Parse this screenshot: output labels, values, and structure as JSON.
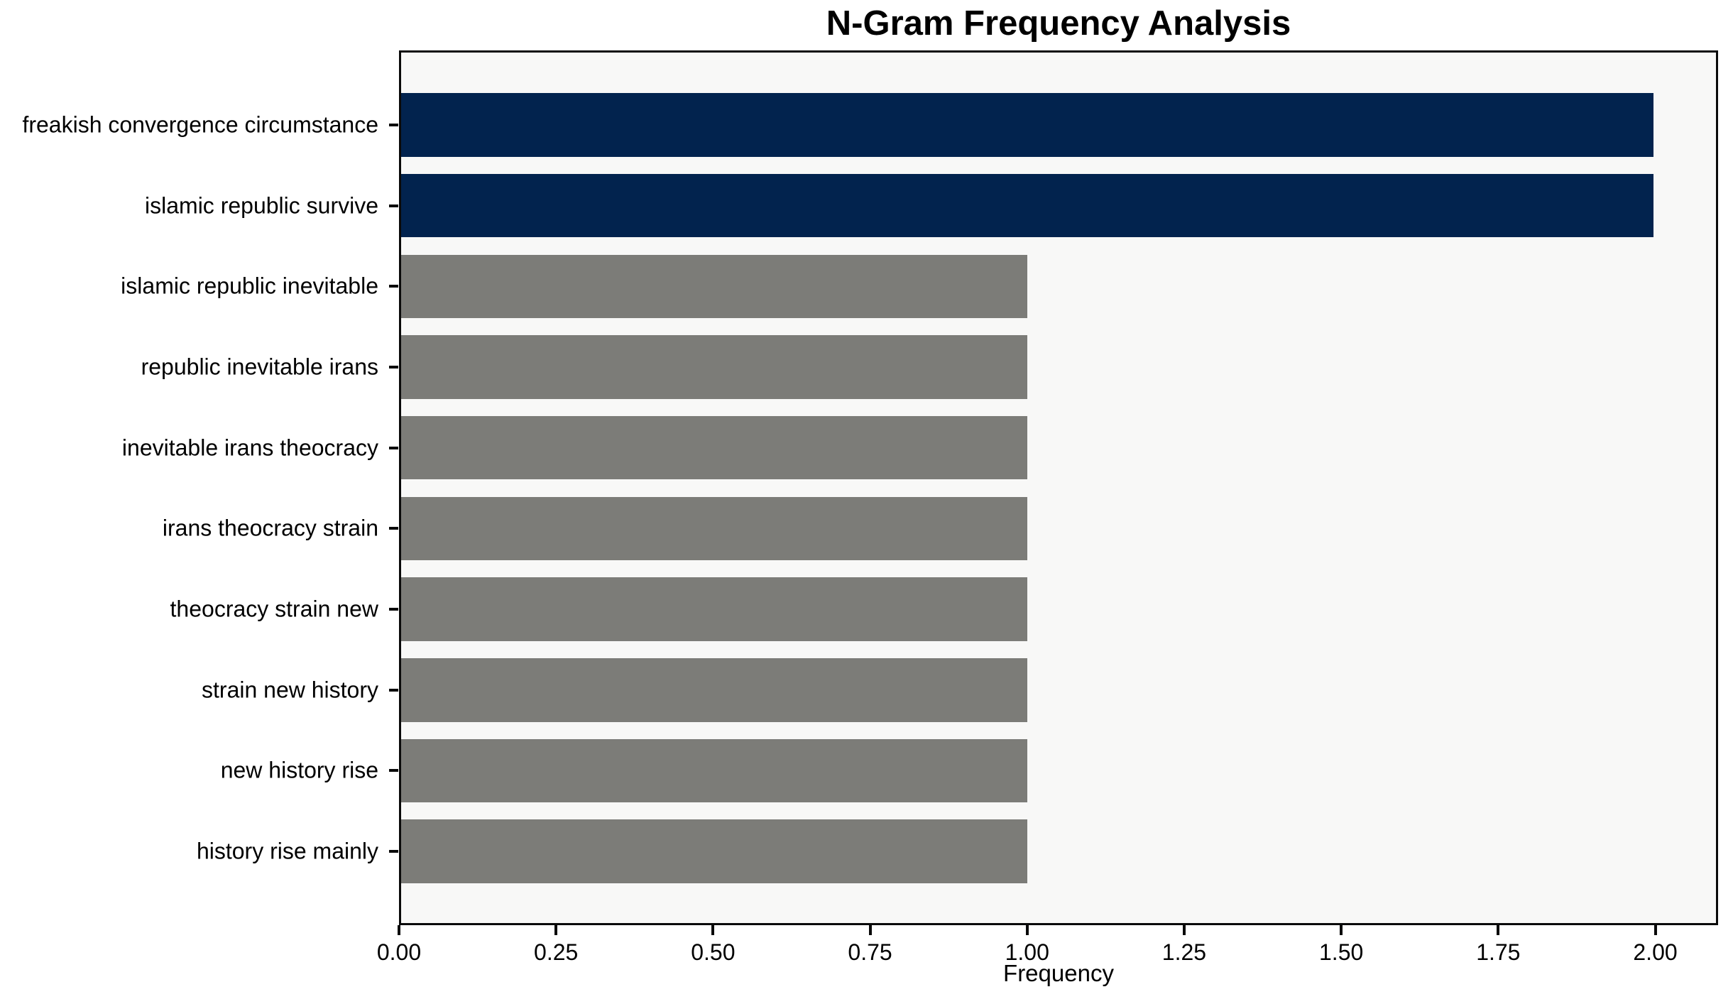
{
  "chart_data": {
    "type": "bar",
    "orientation": "horizontal",
    "title": "N-Gram Frequency Analysis",
    "xlabel": "Frequency",
    "ylabel": "",
    "categories": [
      "freakish convergence circumstance",
      "islamic republic survive",
      "islamic republic inevitable",
      "republic inevitable irans",
      "inevitable irans theocracy",
      "irans theocracy strain",
      "theocracy strain new",
      "strain new history",
      "new history rise",
      "history rise mainly"
    ],
    "values": [
      2,
      2,
      1,
      1,
      1,
      1,
      1,
      1,
      1,
      1
    ],
    "bar_colors": [
      "#02234e",
      "#02234e",
      "#7c7c78",
      "#7c7c78",
      "#7c7c78",
      "#7c7c78",
      "#7c7c78",
      "#7c7c78",
      "#7c7c78",
      "#7c7c78"
    ],
    "highlight_color": "#02234e",
    "default_color": "#7c7c78",
    "xlim": [
      0,
      2.1
    ],
    "xticks": [
      {
        "value": 0.0,
        "label": "0.00"
      },
      {
        "value": 0.25,
        "label": "0.25"
      },
      {
        "value": 0.5,
        "label": "0.50"
      },
      {
        "value": 0.75,
        "label": "0.75"
      },
      {
        "value": 1.0,
        "label": "1.00"
      },
      {
        "value": 1.25,
        "label": "1.25"
      },
      {
        "value": 1.5,
        "label": "1.50"
      },
      {
        "value": 1.75,
        "label": "1.75"
      },
      {
        "value": 2.0,
        "label": "2.00"
      }
    ],
    "grid": false,
    "legend": false,
    "plot_background": "#f8f8f7",
    "figure_background": "#ffffff",
    "spine_color": "#0a0a0a"
  }
}
